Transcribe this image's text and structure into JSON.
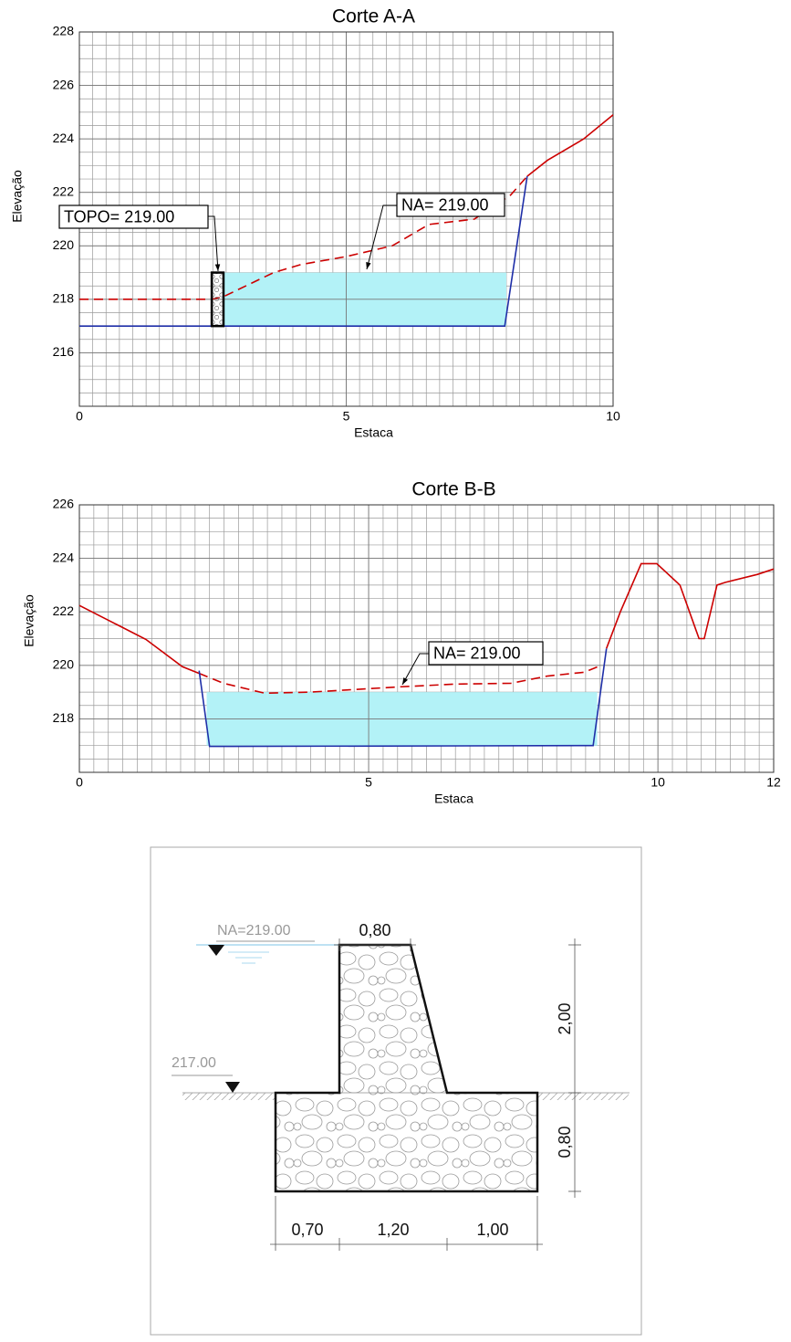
{
  "chart_data": [
    {
      "type": "line",
      "title": "Corte A-A",
      "xlabel": "Estaca",
      "ylabel": "Elevação",
      "xlim": [
        0,
        10
      ],
      "ylim": [
        214,
        228
      ],
      "xticks": [
        0,
        5,
        10
      ],
      "yticks": [
        216,
        218,
        220,
        222,
        224,
        226,
        228
      ],
      "grid": true,
      "minor_grid": {
        "x": 0.25,
        "y": 0.5
      },
      "areas": [
        {
          "color": "#b3f2f7",
          "x": [
            2.7,
            8.0
          ],
          "values": [
            219,
            219
          ],
          "base": 217
        }
      ],
      "series": [
        {
          "color": "#cc0000",
          "dashed": true,
          "x": [
            0,
            2.48,
            2.7,
            3.64,
            4.15,
            5.0,
            5.86,
            6.55,
            7.4,
            8.08,
            8.39
          ],
          "values": [
            218,
            218,
            218.1,
            219.0,
            219.3,
            219.6,
            220.0,
            220.8,
            221.0,
            221.9,
            222.6
          ]
        },
        {
          "color": "#cc0000",
          "x": [
            8.39,
            8.77,
            9.45,
            10
          ],
          "values": [
            222.6,
            223.2,
            224.0,
            224.9
          ]
        },
        {
          "color": "#1f2fa8",
          "x": [
            0,
            7.97,
            8.39
          ],
          "values": [
            217,
            217,
            222.6
          ]
        }
      ],
      "blocks": [
        {
          "x": [
            2.48,
            2.7
          ],
          "values": [
            217,
            219
          ]
        }
      ],
      "annotations": [
        "TOPO= 219.00",
        "NA= 219.00"
      ]
    },
    {
      "type": "line",
      "title": "Corte B-B",
      "xlabel": "Estaca",
      "ylabel": "Elevação",
      "xlim": [
        0,
        12
      ],
      "ylim": [
        216,
        226
      ],
      "xticks": [
        0,
        5,
        10,
        12
      ],
      "yticks": [
        218,
        220,
        222,
        224,
        226
      ],
      "grid": true,
      "minor_grid": {
        "x": 0.25,
        "y": 0.5
      },
      "areas": [
        {
          "color": "#b3f2f7",
          "x": [
            2.2,
            8.95
          ],
          "values": [
            219,
            219
          ],
          "base": 217
        }
      ],
      "series": [
        {
          "color": "#cc0000",
          "x": [
            0,
            1.15,
            1.78,
            2.07
          ],
          "values": [
            222.24,
            220.97,
            219.95,
            219.7
          ]
        },
        {
          "color": "#cc0000",
          "dashed": true,
          "x": [
            2.07,
            2.49,
            3.2,
            4.0,
            5.57,
            6.51,
            7.46,
            8.09,
            8.72,
            9.0
          ],
          "values": [
            219.7,
            219.33,
            218.96,
            219.0,
            219.2,
            219.3,
            219.33,
            219.6,
            219.74,
            219.98
          ]
        },
        {
          "color": "#cc0000",
          "x": [
            9.11,
            9.35,
            9.71,
            9.98,
            10.38,
            10.71,
            10.8,
            11.02,
            11.16,
            11.72,
            12.0
          ],
          "values": [
            220.63,
            222.0,
            223.8,
            223.8,
            223.0,
            221.0,
            221.0,
            223.0,
            223.1,
            223.4,
            223.6
          ]
        },
        {
          "color": "#1f2fa8",
          "x": [
            2.07,
            2.25,
            8.88,
            9.11
          ],
          "values": [
            219.8,
            216.97,
            217,
            220.63
          ]
        }
      ],
      "annotations": [
        "NA= 219.00"
      ]
    }
  ],
  "diagram": {
    "water_level": "NA=219.00",
    "ground_level": "217.00",
    "dimensions": {
      "crest": "0,80",
      "height": "2,00",
      "base_height": "0,80",
      "toe": "0,70",
      "core": "1,20",
      "heel": "1,00"
    }
  }
}
